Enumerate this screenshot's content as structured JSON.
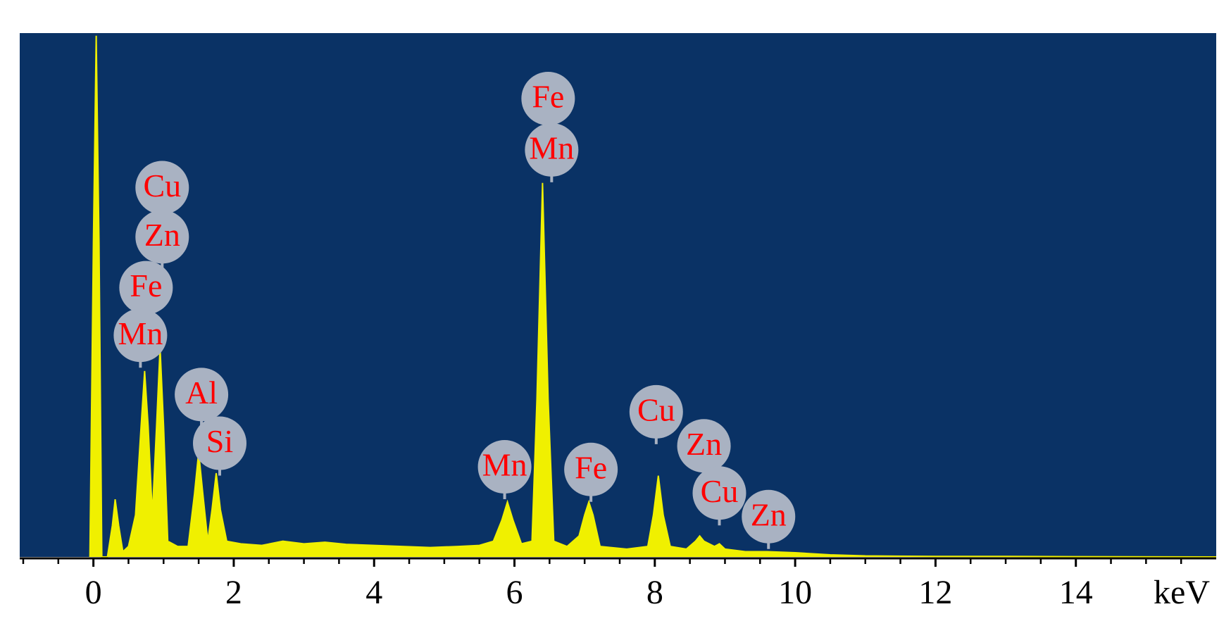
{
  "chart_data": {
    "type": "area",
    "x_label": "keV",
    "xlim": [
      -1.05,
      16
    ],
    "ylim": [
      0,
      100
    ],
    "xticks": [
      0,
      2,
      4,
      6,
      8,
      10,
      12,
      14
    ],
    "xminorticks": [
      -1,
      -0.5,
      0.5,
      1,
      1.5,
      2.5,
      3,
      3.5,
      4.5,
      5,
      5.5,
      6.5,
      7,
      7.5,
      8.5,
      9,
      9.5,
      10.5,
      11,
      11.5,
      12.5,
      13,
      13.5,
      14.5,
      15,
      15.5
    ],
    "background": "#0a3265",
    "color": "#f0f000",
    "x": [
      -0.05,
      0.0,
      0.04,
      0.08,
      0.12,
      0.2,
      0.27,
      0.31,
      0.36,
      0.42,
      0.5,
      0.6,
      0.68,
      0.73,
      0.78,
      0.84,
      0.9,
      0.95,
      1.0,
      1.06,
      1.2,
      1.35,
      1.44,
      1.5,
      1.56,
      1.63,
      1.69,
      1.75,
      1.81,
      1.9,
      2.1,
      2.4,
      2.7,
      3.0,
      3.3,
      3.6,
      4.0,
      4.4,
      4.8,
      5.2,
      5.5,
      5.7,
      5.82,
      5.9,
      5.98,
      6.1,
      6.25,
      6.32,
      6.4,
      6.48,
      6.56,
      6.75,
      6.92,
      7.0,
      7.06,
      7.12,
      7.22,
      7.6,
      7.9,
      7.98,
      8.05,
      8.12,
      8.22,
      8.45,
      8.58,
      8.64,
      8.7,
      8.85,
      8.92,
      9.0,
      9.3,
      9.6,
      10.0,
      10.5,
      11,
      12,
      13,
      14,
      16
    ],
    "values": [
      0,
      60,
      99.5,
      60,
      0,
      0,
      6,
      11,
      6,
      1,
      2,
      8,
      25,
      35.5,
      25,
      8,
      25,
      40,
      25,
      3,
      2,
      2,
      12,
      20,
      12,
      3,
      9,
      16,
      9,
      3,
      2.5,
      2.2,
      3,
      2.5,
      2.8,
      2.4,
      2.2,
      2,
      1.8,
      2,
      2.2,
      3,
      7,
      10.5,
      7,
      2.5,
      3,
      30,
      71.4,
      30,
      3,
      2,
      4,
      8,
      10.5,
      8,
      2,
      1.5,
      2,
      8,
      15.5,
      8,
      2,
      1.5,
      3,
      4,
      3,
      2,
      2.5,
      1.5,
      1,
      1,
      0.8,
      0.4,
      0.2,
      0.1,
      0.1,
      0.05,
      0
    ],
    "annotations": [
      {
        "text": "Cu",
        "x": 0.98,
        "y": 70.5
      },
      {
        "text": "Zn",
        "x": 0.98,
        "y": 61.1
      },
      {
        "text": "Fe",
        "x": 0.75,
        "y": 51.4
      },
      {
        "text": "Mn",
        "x": 0.67,
        "y": 42.3
      },
      {
        "text": "Al",
        "x": 1.54,
        "y": 31
      },
      {
        "text": "Si",
        "x": 1.8,
        "y": 21.7
      },
      {
        "text": "Fe",
        "x": 6.48,
        "y": 87.5
      },
      {
        "text": "Mn",
        "x": 6.53,
        "y": 77.7
      },
      {
        "text": "Mn",
        "x": 5.86,
        "y": 17.2
      },
      {
        "text": "Fe",
        "x": 7.09,
        "y": 16.7
      },
      {
        "text": "Cu",
        "x": 8.02,
        "y": 27.7
      },
      {
        "text": "Zn",
        "x": 8.7,
        "y": 21.2
      },
      {
        "text": "Cu",
        "x": 8.92,
        "y": 12.2
      },
      {
        "text": "Zn",
        "x": 9.62,
        "y": 7.7
      }
    ]
  }
}
